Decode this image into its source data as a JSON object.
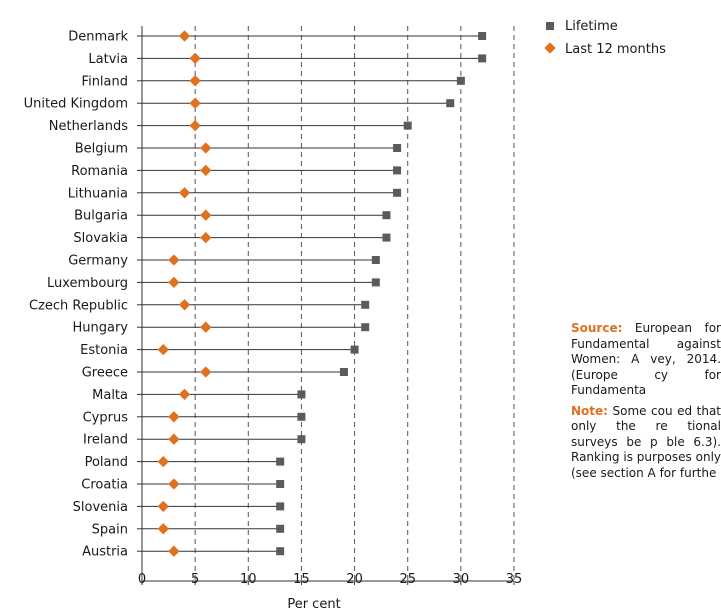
{
  "chart_data": {
    "type": "dot",
    "categories": [
      "Denmark",
      "Latvia",
      "Finland",
      "United Kingdom",
      "Netherlands",
      "Belgium",
      "Romania",
      "Lithuania",
      "Bulgaria",
      "Slovakia",
      "Germany",
      "Luxembourg",
      "Czech Republic",
      "Hungary",
      "Estonia",
      "Greece",
      "Malta",
      "Cyprus",
      "Ireland",
      "Poland",
      "Croatia",
      "Slovenia",
      "Spain",
      "Austria"
    ],
    "series": [
      {
        "name": "Lifetime",
        "marker": "square",
        "color": "#5b5b5b",
        "values": [
          32,
          32,
          30,
          29,
          25,
          24,
          24,
          24,
          23,
          23,
          22,
          22,
          21,
          21,
          20,
          19,
          15,
          15,
          15,
          13,
          13,
          13,
          13,
          13
        ]
      },
      {
        "name": "Last 12 months",
        "marker": "diamond",
        "color": "#e0711f",
        "values": [
          4,
          5,
          5,
          5,
          5,
          6,
          6,
          4,
          6,
          6,
          3,
          3,
          4,
          6,
          2,
          6,
          4,
          3,
          3,
          2,
          3,
          2,
          2,
          3
        ]
      }
    ],
    "xlabel": "Per cent",
    "xlim": [
      0,
      35
    ],
    "xticks": [
      0,
      5,
      10,
      15,
      20,
      25,
      30,
      35
    ],
    "grid": "dashed vertical",
    "legend_position": "top-right"
  },
  "notes": {
    "source_label": "Source:",
    "source_text": " European for Fundamental against Women: A vey, 2014. (Europe cy for Fundamenta",
    "note_label": "Note:",
    "note_text": " Some cou ed that only the re tional surveys be p ble 6.3). Ranking is purposes only (see section A for furthe"
  }
}
